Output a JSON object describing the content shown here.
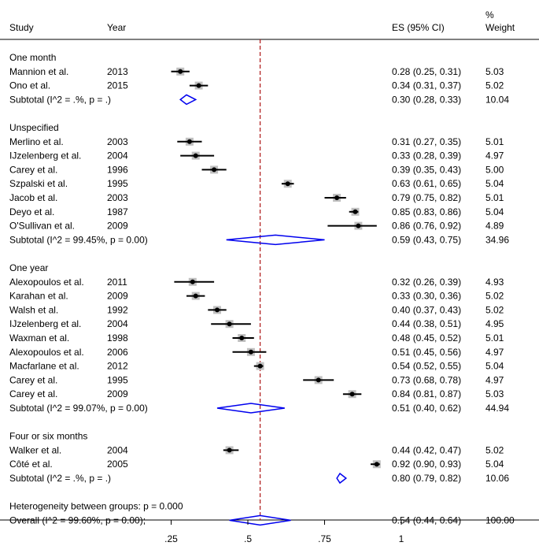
{
  "chart_data": {
    "type": "forest",
    "headers": {
      "study": "Study",
      "year": "Year",
      "es": "ES (95% CI)",
      "weight_line1": "%",
      "weight_line2": "Weight"
    },
    "xaxis": {
      "ticks": [
        0.25,
        0.5,
        0.75,
        1
      ],
      "tick_labels": [
        ".25",
        ".5",
        ".75",
        "1"
      ],
      "range": [
        0,
        1.5
      ]
    },
    "overall_line": 0.54,
    "groups": [
      {
        "title": "One month",
        "studies": [
          {
            "study": "Mannion et al.",
            "year": "2013",
            "es": 0.28,
            "lo": 0.25,
            "hi": 0.31,
            "es_label": "0.28 (0.25, 0.31)",
            "weight": "5.03"
          },
          {
            "study": "Ono et al.",
            "year": "2015",
            "es": 0.34,
            "lo": 0.31,
            "hi": 0.37,
            "es_label": "0.34 (0.31, 0.37)",
            "weight": "5.02"
          }
        ],
        "subtotal": {
          "label": "Subtotal  (I^2 = .%, p = .)",
          "es": 0.3,
          "lo": 0.28,
          "hi": 0.33,
          "es_label": "0.30 (0.28, 0.33)",
          "weight": "10.04"
        }
      },
      {
        "title": "Unspecified",
        "studies": [
          {
            "study": "Merlino et al.",
            "year": "2003",
            "es": 0.31,
            "lo": 0.27,
            "hi": 0.35,
            "es_label": "0.31 (0.27, 0.35)",
            "weight": "5.01"
          },
          {
            "study": "IJzelenberg et al.",
            "year": "2004",
            "es": 0.33,
            "lo": 0.28,
            "hi": 0.39,
            "es_label": "0.33 (0.28, 0.39)",
            "weight": "4.97"
          },
          {
            "study": "Carey et al.",
            "year": "1996",
            "es": 0.39,
            "lo": 0.35,
            "hi": 0.43,
            "es_label": "0.39 (0.35, 0.43)",
            "weight": "5.00"
          },
          {
            "study": "Szpalski et al.",
            "year": "1995",
            "es": 0.63,
            "lo": 0.61,
            "hi": 0.65,
            "es_label": "0.63 (0.61, 0.65)",
            "weight": "5.04"
          },
          {
            "study": "Jacob et al.",
            "year": "2003",
            "es": 0.79,
            "lo": 0.75,
            "hi": 0.82,
            "es_label": "0.79 (0.75, 0.82)",
            "weight": "5.01"
          },
          {
            "study": "Deyo et al.",
            "year": "1987",
            "es": 0.85,
            "lo": 0.83,
            "hi": 0.86,
            "es_label": "0.85 (0.83, 0.86)",
            "weight": "5.04"
          },
          {
            "study": "O'Sullivan et al.",
            "year": "2009",
            "es": 0.86,
            "lo": 0.76,
            "hi": 0.92,
            "es_label": "0.86 (0.76, 0.92)",
            "weight": "4.89"
          }
        ],
        "subtotal": {
          "label": "Subtotal  (I^2 = 99.45%, p = 0.00)",
          "es": 0.59,
          "lo": 0.43,
          "hi": 0.75,
          "es_label": "0.59 (0.43, 0.75)",
          "weight": "34.96"
        }
      },
      {
        "title": "One year",
        "studies": [
          {
            "study": "Alexopoulos et al.",
            "year": "2011",
            "es": 0.32,
            "lo": 0.26,
            "hi": 0.39,
            "es_label": "0.32 (0.26, 0.39)",
            "weight": "4.93"
          },
          {
            "study": "Karahan et al.",
            "year": "2009",
            "es": 0.33,
            "lo": 0.3,
            "hi": 0.36,
            "es_label": "0.33 (0.30, 0.36)",
            "weight": "5.02"
          },
          {
            "study": "Walsh et al.",
            "year": "1992",
            "es": 0.4,
            "lo": 0.37,
            "hi": 0.43,
            "es_label": "0.40 (0.37, 0.43)",
            "weight": "5.02"
          },
          {
            "study": "IJzelenberg et al.",
            "year": "2004",
            "es": 0.44,
            "lo": 0.38,
            "hi": 0.51,
            "es_label": "0.44 (0.38, 0.51)",
            "weight": "4.95"
          },
          {
            "study": "Waxman et al.",
            "year": "1998",
            "es": 0.48,
            "lo": 0.45,
            "hi": 0.52,
            "es_label": "0.48 (0.45, 0.52)",
            "weight": "5.01"
          },
          {
            "study": "Alexopoulos et al.",
            "year": "2006",
            "es": 0.51,
            "lo": 0.45,
            "hi": 0.56,
            "es_label": "0.51 (0.45, 0.56)",
            "weight": "4.97"
          },
          {
            "study": "Macfarlane et al.",
            "year": "2012",
            "es": 0.54,
            "lo": 0.52,
            "hi": 0.55,
            "es_label": "0.54 (0.52, 0.55)",
            "weight": "5.04"
          },
          {
            "study": "Carey et al.",
            "year": "1995",
            "es": 0.73,
            "lo": 0.68,
            "hi": 0.78,
            "es_label": "0.73 (0.68, 0.78)",
            "weight": "4.97"
          },
          {
            "study": "Carey et al.",
            "year": "2009",
            "es": 0.84,
            "lo": 0.81,
            "hi": 0.87,
            "es_label": "0.84 (0.81, 0.87)",
            "weight": "5.03"
          }
        ],
        "subtotal": {
          "label": "Subtotal  (I^2 = 99.07%, p = 0.00)",
          "es": 0.51,
          "lo": 0.4,
          "hi": 0.62,
          "es_label": "0.51 (0.40, 0.62)",
          "weight": "44.94"
        }
      },
      {
        "title": "Four or six months",
        "studies": [
          {
            "study": "Walker et al.",
            "year": "2004",
            "es": 0.44,
            "lo": 0.42,
            "hi": 0.47,
            "es_label": "0.44 (0.42, 0.47)",
            "weight": "5.02"
          },
          {
            "study": "Côté et al.",
            "year": "2005",
            "es": 0.92,
            "lo": 0.9,
            "hi": 0.93,
            "es_label": "0.92 (0.90, 0.93)",
            "weight": "5.04"
          }
        ],
        "subtotal": {
          "label": "Subtotal  (I^2 = .%, p = .)",
          "es": 0.8,
          "lo": 0.79,
          "hi": 0.82,
          "es_label": "0.80 (0.79, 0.82)",
          "weight": "10.06"
        }
      }
    ],
    "heterogeneity": "Heterogeneity between groups: p = 0.000",
    "overall": {
      "label": "Overall  (I^2 = 99.60%, p = 0.00);",
      "es": 0.54,
      "lo": 0.44,
      "hi": 0.64,
      "es_label": "0.54 (0.44, 0.64)",
      "weight": "100.00"
    },
    "colors": {
      "diamond": "#0000ee",
      "overall_line": "#b22222",
      "box": "#c0c0c0",
      "point": "#000000"
    }
  }
}
